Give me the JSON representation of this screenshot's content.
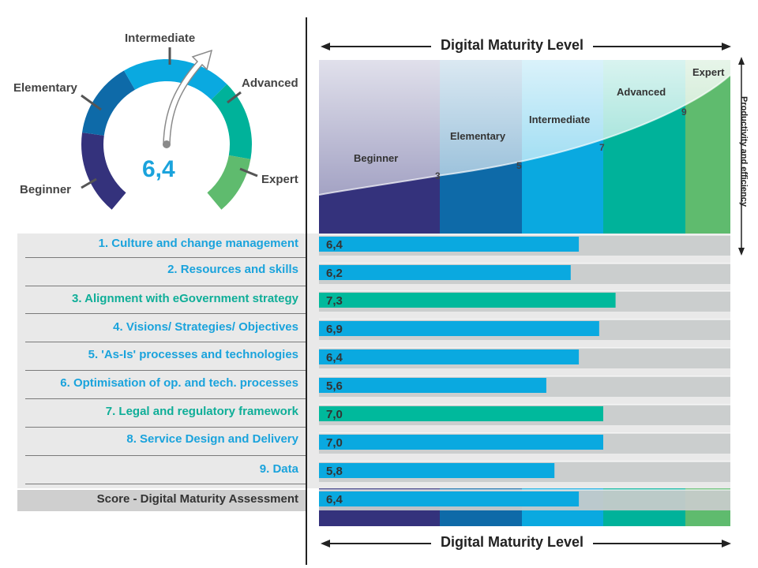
{
  "colors": {
    "beginner": "#34327c",
    "elementary": "#0e6aa8",
    "intermediate": "#0aa9e0",
    "advanced": "#00b29a",
    "expert": "#5fbb6e",
    "bar_blue": "#0aa9e0",
    "bar_teal": "#00b99c",
    "label_blue": "#1aa3dc",
    "label_teal": "#0fae98"
  },
  "gauge": {
    "score": "6,4",
    "levels": [
      "Beginner",
      "Elementary",
      "Intermediate",
      "Advanced",
      "Expert"
    ]
  },
  "axis_title_top": "Digital Maturity Level",
  "axis_title_bottom": "Digital Maturity Level",
  "side_label": "Productivity and efficiency",
  "levels_panel": {
    "names": [
      "Beginner",
      "Elementary",
      "Intermediate",
      "Advanced",
      "Expert"
    ],
    "thresholds": [
      "3",
      "5",
      "7",
      "9"
    ]
  },
  "chart_data": {
    "type": "bar",
    "orientation": "horizontal",
    "categories": [
      "1. Culture and change management",
      "2. Resources and skills",
      "3. Alignment with eGovernment strategy",
      "4. Visions/ Strategies/ Objectives",
      "5. 'As-Is' processes and technologies",
      "6. Optimisation of op. and tech. processes",
      "7. Legal and regulatory framework",
      "8. Service Design and Delivery",
      "9. Data",
      "Score - Digital Maturity Assessment"
    ],
    "values": [
      6.4,
      6.2,
      7.3,
      6.9,
      6.4,
      5.6,
      7.0,
      7.0,
      5.8,
      6.4
    ],
    "value_labels": [
      "6,4",
      "6,2",
      "7,3",
      "6,9",
      "6,4",
      "5,6",
      "7,0",
      "7,0",
      "5,8",
      "6,4"
    ],
    "highlight": [
      false,
      false,
      true,
      false,
      false,
      false,
      true,
      false,
      false,
      false
    ],
    "xlim": [
      0,
      10
    ],
    "level_bands": [
      {
        "name": "Beginner",
        "from": 0,
        "to": 3
      },
      {
        "name": "Elementary",
        "from": 3,
        "to": 5
      },
      {
        "name": "Intermediate",
        "from": 5,
        "to": 7
      },
      {
        "name": "Advanced",
        "from": 7,
        "to": 9
      },
      {
        "name": "Expert",
        "from": 9,
        "to": 10
      }
    ]
  }
}
